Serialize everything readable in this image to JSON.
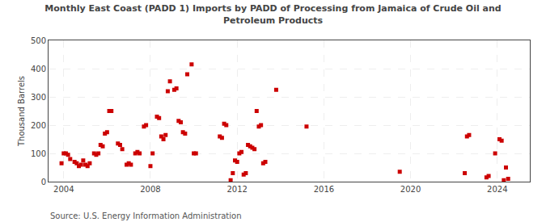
{
  "chart_data": {
    "type": "scatter",
    "title": "Monthly East Coast (PADD 1) Imports by PADD of Processing from Jamaica of Crude Oil and\nPetroleum Products",
    "ylabel": "Thousand Barrels",
    "annotations": [
      "Source: U.S. Energy Information Administration"
    ],
    "color": "#cc0000",
    "marker": "square",
    "grid": true,
    "xlim": [
      2003.3,
      2025.5
    ],
    "ylim": [
      0,
      500
    ],
    "xticks": [
      2004,
      2008,
      2012,
      2016,
      2020,
      2024
    ],
    "yticks": [
      0,
      100,
      200,
      300,
      400,
      500
    ],
    "x": [
      2003.9,
      2004.0,
      2004.1,
      2004.2,
      2004.3,
      2004.5,
      2004.6,
      2004.7,
      2004.8,
      2004.9,
      2005.0,
      2005.1,
      2005.2,
      2005.4,
      2005.5,
      2005.6,
      2005.7,
      2005.8,
      2005.9,
      2006.0,
      2006.1,
      2006.2,
      2006.5,
      2006.6,
      2006.7,
      2006.9,
      2007.0,
      2007.1,
      2007.3,
      2007.4,
      2007.5,
      2007.7,
      2007.8,
      2008.0,
      2008.1,
      2008.3,
      2008.4,
      2008.5,
      2008.6,
      2008.7,
      2008.8,
      2008.9,
      2009.1,
      2009.2,
      2009.3,
      2009.4,
      2009.5,
      2009.6,
      2009.7,
      2009.9,
      2010.0,
      2010.1,
      2011.2,
      2011.3,
      2011.4,
      2011.5,
      2011.7,
      2011.8,
      2011.9,
      2012.0,
      2012.1,
      2012.2,
      2012.3,
      2012.4,
      2012.5,
      2012.6,
      2012.7,
      2012.8,
      2012.9,
      2013.0,
      2013.1,
      2013.2,
      2013.3,
      2013.8,
      2015.2,
      2019.5,
      2022.5,
      2022.6,
      2022.7,
      2023.5,
      2023.6,
      2023.9,
      2024.1,
      2024.2,
      2024.3,
      2024.4,
      2024.5
    ],
    "values": [
      65,
      100,
      100,
      95,
      80,
      70,
      65,
      55,
      60,
      75,
      60,
      55,
      65,
      100,
      95,
      100,
      130,
      125,
      170,
      175,
      250,
      250,
      135,
      130,
      115,
      60,
      65,
      60,
      100,
      105,
      100,
      195,
      200,
      55,
      100,
      230,
      225,
      160,
      150,
      165,
      320,
      355,
      325,
      330,
      215,
      210,
      175,
      170,
      380,
      415,
      100,
      100,
      160,
      155,
      205,
      200,
      5,
      30,
      75,
      70,
      100,
      105,
      25,
      30,
      130,
      125,
      120,
      115,
      250,
      195,
      200,
      65,
      70,
      325,
      195,
      35,
      30,
      160,
      165,
      15,
      20,
      100,
      150,
      145,
      5,
      50,
      10
    ]
  }
}
